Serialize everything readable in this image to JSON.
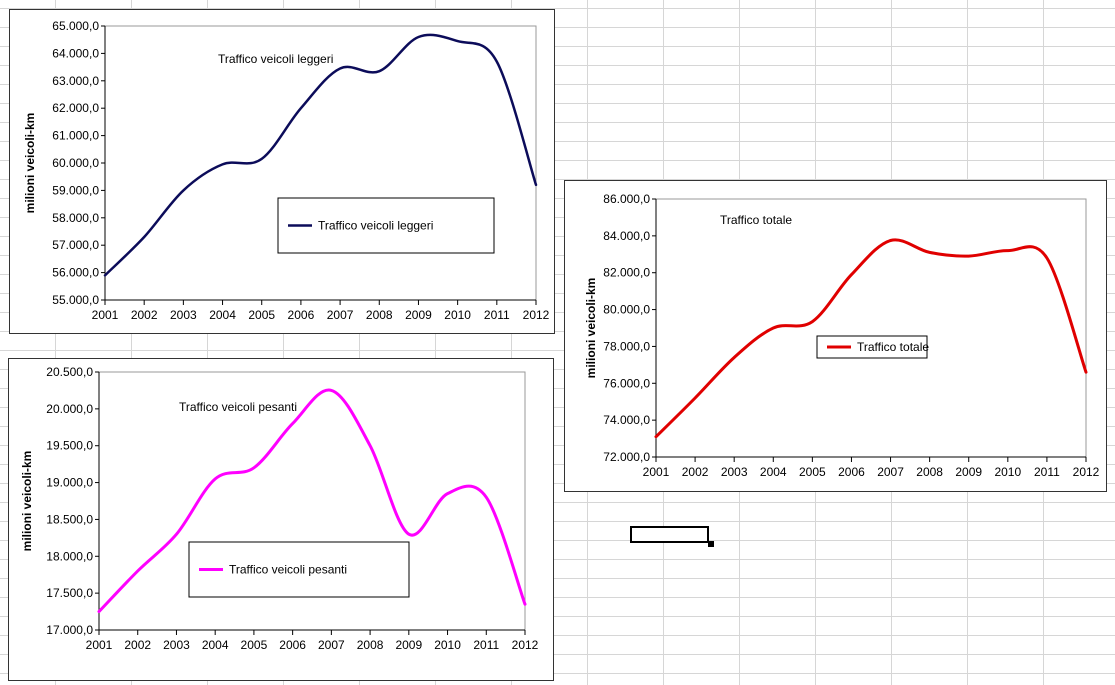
{
  "spreadsheet": {
    "selected_cell": ""
  },
  "chart_data": [
    {
      "id": "leggeri",
      "type": "line",
      "title": "Traffico veicoli leggeri",
      "legend": "Traffico veicoli leggeri",
      "ylabel": "milioni veicoli-km",
      "xlabel": "",
      "color": "#0c0c5a",
      "categories": [
        "2001",
        "2002",
        "2003",
        "2004",
        "2005",
        "2006",
        "2007",
        "2008",
        "2009",
        "2010",
        "2011",
        "2012"
      ],
      "values": [
        55900,
        57300,
        59000,
        59950,
        60150,
        62000,
        63450,
        63350,
        64600,
        64450,
        63700,
        59200
      ],
      "ylim": [
        55000,
        65000
      ],
      "yticks": [
        "55.000,0",
        "56.000,0",
        "57.000,0",
        "58.000,0",
        "59.000,0",
        "60.000,0",
        "61.000,0",
        "62.000,0",
        "63.000,0",
        "64.000,0",
        "65.000,0"
      ]
    },
    {
      "id": "pesanti",
      "type": "line",
      "title": "Traffico veicoli pesanti",
      "legend": "Traffico veicoli pesanti",
      "ylabel": "milioni veicoli-km",
      "xlabel": "",
      "color": "#ff00ff",
      "categories": [
        "2001",
        "2002",
        "2003",
        "2004",
        "2005",
        "2006",
        "2007",
        "2008",
        "2009",
        "2010",
        "2011",
        "2012"
      ],
      "values": [
        17250,
        17800,
        18300,
        19050,
        19200,
        19800,
        20250,
        19500,
        18300,
        18850,
        18800,
        17350
      ],
      "ylim": [
        17000,
        20500
      ],
      "yticks": [
        "17.000,0",
        "17.500,0",
        "18.000,0",
        "18.500,0",
        "19.000,0",
        "19.500,0",
        "20.000,0",
        "20.500,0"
      ]
    },
    {
      "id": "totale",
      "type": "line",
      "title": "Traffico totale",
      "legend": "Traffico totale",
      "ylabel": "milioni veicoli-km",
      "xlabel": "",
      "color": "#e00000",
      "categories": [
        "2001",
        "2002",
        "2003",
        "2004",
        "2005",
        "2006",
        "2007",
        "2008",
        "2009",
        "2010",
        "2011",
        "2012"
      ],
      "values": [
        73100,
        75200,
        77400,
        79000,
        79350,
        81900,
        83750,
        83100,
        82900,
        83200,
        82800,
        76600
      ],
      "ylim": [
        72000,
        86000
      ],
      "yticks": [
        "72.000,0",
        "74.000,0",
        "76.000,0",
        "78.000,0",
        "80.000,0",
        "82.000,0",
        "84.000,0",
        "86.000,0"
      ]
    }
  ]
}
